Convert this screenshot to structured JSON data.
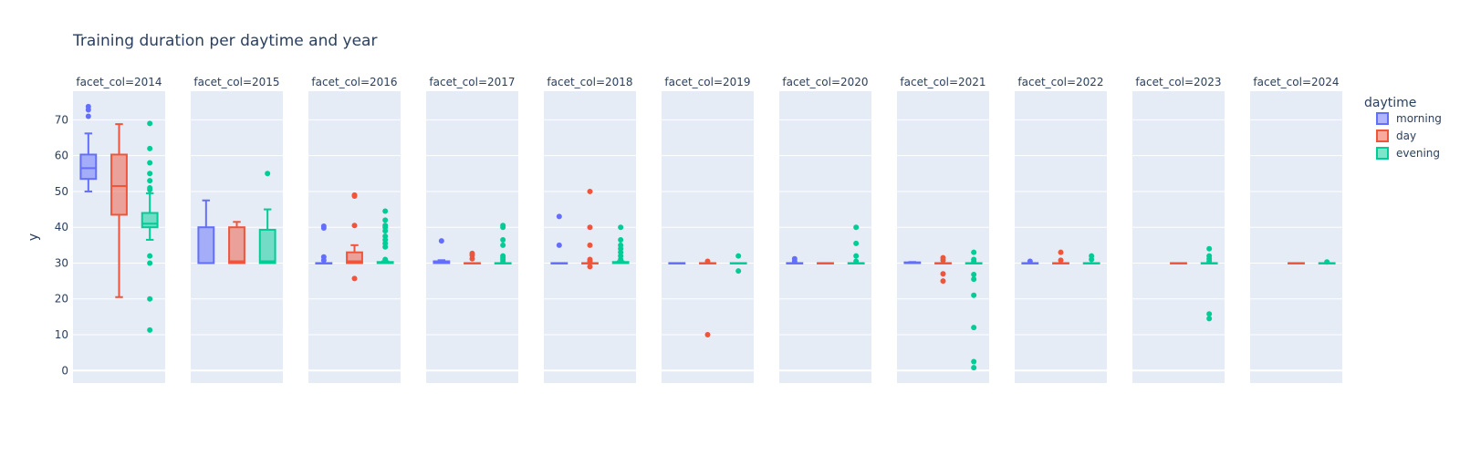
{
  "chart_data": {
    "type": "box",
    "title": "Training duration per daytime and year",
    "ylabel": "y",
    "ylim": [
      -3.5,
      78
    ],
    "yticks": [
      0,
      10,
      20,
      30,
      40,
      50,
      60,
      70
    ],
    "facets": [
      "facet_col=2014",
      "facet_col=2015",
      "facet_col=2016",
      "facet_col=2017",
      "facet_col=2018",
      "facet_col=2019",
      "facet_col=2020",
      "facet_col=2021",
      "facet_col=2022",
      "facet_col=2023",
      "facet_col=2024"
    ],
    "legend": {
      "title": "daytime",
      "placement": "right",
      "items": [
        {
          "name": "morning",
          "color": "#636efa"
        },
        {
          "name": "day",
          "color": "#ef553b"
        },
        {
          "name": "evening",
          "color": "#00cc96"
        }
      ]
    },
    "series": [
      {
        "name": "morning",
        "color": "#636efa",
        "boxes": [
          {
            "q1": 53.5,
            "median": 56.5,
            "q3": 60.3,
            "lower": 50,
            "upper": 66.2,
            "outliers": [
              71,
              72.8,
              73.7
            ]
          },
          {
            "q1": 30,
            "median": 30,
            "q3": 40,
            "lower": 30,
            "upper": 47.5,
            "outliers": []
          },
          {
            "q1": 30,
            "median": 30,
            "q3": 30,
            "lower": 30,
            "upper": 30,
            "outliers": [
              30.8,
              31.7,
              39.8,
              40.3
            ]
          },
          {
            "q1": 30,
            "median": 30.2,
            "q3": 30.5,
            "lower": 30,
            "upper": 30.8,
            "outliers": [
              36.2
            ]
          },
          {
            "q1": 30,
            "median": 30,
            "q3": 30,
            "lower": 30,
            "upper": 30,
            "outliers": [
              35,
              43
            ]
          },
          {
            "q1": 30,
            "median": 30,
            "q3": 30,
            "lower": 30,
            "upper": 30,
            "outliers": []
          },
          {
            "q1": 30,
            "median": 30,
            "q3": 30,
            "lower": 30,
            "upper": 30,
            "outliers": [
              30.5,
              31.2
            ]
          },
          {
            "q1": 30,
            "median": 30,
            "q3": 30.2,
            "lower": 30,
            "upper": 30.3,
            "outliers": []
          },
          {
            "q1": 30,
            "median": 30,
            "q3": 30,
            "lower": 30,
            "upper": 30,
            "outliers": [
              30.5
            ]
          },
          null,
          null
        ]
      },
      {
        "name": "day",
        "color": "#ef553b",
        "boxes": [
          {
            "q1": 43.5,
            "median": 51.5,
            "q3": 60.3,
            "lower": 20.5,
            "upper": 68.8,
            "outliers": []
          },
          {
            "q1": 30,
            "median": 30.5,
            "q3": 40,
            "lower": 30,
            "upper": 41.5,
            "outliers": []
          },
          {
            "q1": 30,
            "median": 30.5,
            "q3": 33,
            "lower": 30,
            "upper": 35,
            "outliers": [
              25.7,
              40.5,
              48.7,
              49
            ]
          },
          {
            "q1": 30,
            "median": 30,
            "q3": 30,
            "lower": 30,
            "upper": 30,
            "outliers": [
              31.2,
              32.2,
              32.7
            ]
          },
          {
            "q1": 30,
            "median": 30,
            "q3": 30,
            "lower": 30,
            "upper": 30,
            "outliers": [
              29,
              30.5,
              31,
              35,
              40,
              50
            ]
          },
          {
            "q1": 30,
            "median": 30,
            "q3": 30,
            "lower": 30,
            "upper": 30,
            "outliers": [
              10,
              30.5
            ]
          },
          {
            "q1": 30,
            "median": 30,
            "q3": 30,
            "lower": 30,
            "upper": 30,
            "outliers": []
          },
          {
            "q1": 30,
            "median": 30,
            "q3": 30,
            "lower": 30,
            "upper": 30,
            "outliers": [
              25,
              27,
              30.8,
              31.5
            ]
          },
          {
            "q1": 30,
            "median": 30,
            "q3": 30,
            "lower": 30,
            "upper": 30,
            "outliers": [
              30.8,
              33
            ]
          },
          {
            "q1": 30,
            "median": 30,
            "q3": 30,
            "lower": 30,
            "upper": 30,
            "outliers": []
          },
          {
            "q1": 30,
            "median": 30,
            "q3": 30,
            "lower": 30,
            "upper": 30,
            "outliers": []
          }
        ]
      },
      {
        "name": "evening",
        "color": "#00cc96",
        "boxes": [
          {
            "q1": 40,
            "median": 41,
            "q3": 44,
            "lower": 36.5,
            "upper": 49.5,
            "outliers": [
              11.3,
              20,
              30,
              32,
              50.5,
              51,
              53,
              55,
              58,
              62,
              69
            ]
          },
          {
            "q1": 30,
            "median": 30.5,
            "q3": 39.3,
            "lower": 30,
            "upper": 45,
            "outliers": [
              55
            ]
          },
          {
            "q1": 30,
            "median": 30,
            "q3": 30.3,
            "lower": 30,
            "upper": 30.5,
            "outliers": [
              31,
              34.5,
              35.5,
              36.5,
              37.5,
              39,
              40,
              40.5,
              42,
              44.5
            ]
          },
          {
            "q1": 30,
            "median": 30,
            "q3": 30,
            "lower": 30,
            "upper": 30,
            "outliers": [
              30.5,
              31,
              31.5,
              32,
              35,
              36.5,
              40,
              40.5
            ]
          },
          {
            "q1": 30,
            "median": 30,
            "q3": 30.3,
            "lower": 30,
            "upper": 30.5,
            "outliers": [
              31,
              32,
              33,
              34,
              35,
              36.5,
              40
            ]
          },
          {
            "q1": 30,
            "median": 30,
            "q3": 30,
            "lower": 30,
            "upper": 30,
            "outliers": [
              27.8,
              32
            ]
          },
          {
            "q1": 30,
            "median": 30,
            "q3": 30,
            "lower": 30,
            "upper": 30,
            "outliers": [
              30.5,
              32,
              35.5,
              40
            ]
          },
          {
            "q1": 30,
            "median": 30,
            "q3": 30,
            "lower": 30,
            "upper": 30,
            "outliers": [
              0.8,
              2.5,
              12,
              21,
              25.5,
              26.8,
              30.5,
              31,
              33
            ]
          },
          {
            "q1": 30,
            "median": 30,
            "q3": 30,
            "lower": 30,
            "upper": 30,
            "outliers": [
              31,
              32
            ]
          },
          {
            "q1": 30,
            "median": 30,
            "q3": 30,
            "lower": 30,
            "upper": 30,
            "outliers": [
              14.5,
              15.8,
              30.5,
              31.2,
              32,
              34
            ]
          },
          {
            "q1": 30,
            "median": 30,
            "q3": 30,
            "lower": 30,
            "upper": 30,
            "outliers": [
              30.3
            ]
          }
        ]
      }
    ]
  }
}
